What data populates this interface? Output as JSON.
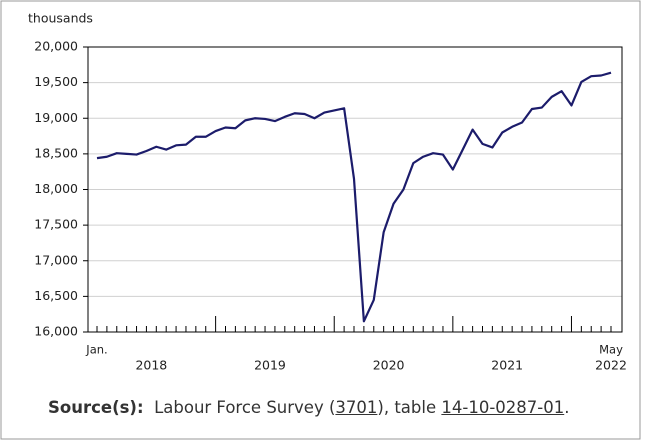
{
  "chart_data": {
    "type": "line",
    "y_unit": "thousands",
    "categories": [
      "Jan.",
      null,
      null,
      null,
      null,
      null,
      null,
      null,
      null,
      null,
      null,
      null,
      null,
      null,
      null,
      null,
      null,
      null,
      null,
      null,
      null,
      null,
      null,
      null,
      null,
      null,
      null,
      null,
      null,
      null,
      null,
      null,
      null,
      null,
      null,
      null,
      null,
      null,
      null,
      null,
      null,
      null,
      null,
      null,
      null,
      null,
      null,
      null,
      null,
      null,
      null,
      null,
      "May"
    ],
    "x_groups": [
      "2018",
      "2019",
      "2020",
      "2021",
      "2022"
    ],
    "series": [
      {
        "color": "#1c1c6b",
        "values": [
          18440,
          18460,
          18510,
          18500,
          18490,
          18540,
          18600,
          18560,
          18620,
          18630,
          18740,
          18740,
          18820,
          18870,
          18860,
          18970,
          19000,
          18990,
          18960,
          19020,
          19070,
          19060,
          19000,
          19080,
          19110,
          19140,
          18150,
          16150,
          16450,
          17400,
          17800,
          18000,
          18370,
          18460,
          18510,
          18490,
          18280,
          18560,
          18840,
          18640,
          18590,
          18800,
          18880,
          18940,
          19130,
          19150,
          19300,
          19380,
          19180,
          19510,
          19590,
          19600,
          19640
        ]
      }
    ],
    "ylim": [
      16000,
      20000
    ],
    "yticks": [
      {
        "value": 16000,
        "label": "16,000"
      },
      {
        "value": 16500,
        "label": "16,500"
      },
      {
        "value": 17000,
        "label": "17,000"
      },
      {
        "value": 17500,
        "label": "17,500"
      },
      {
        "value": 18000,
        "label": "18,000"
      },
      {
        "value": 18500,
        "label": "18,500"
      },
      {
        "value": 19000,
        "label": "19,000"
      },
      {
        "value": 19500,
        "label": "19,500"
      },
      {
        "value": 20000,
        "label": "20,000"
      }
    ],
    "grid": true,
    "source": {
      "label": "Source(s):",
      "text1": "Labour Force Survey (",
      "link1": "3701",
      "text2": "), table ",
      "link2": "14-10-0287-01",
      "text3": "."
    }
  }
}
